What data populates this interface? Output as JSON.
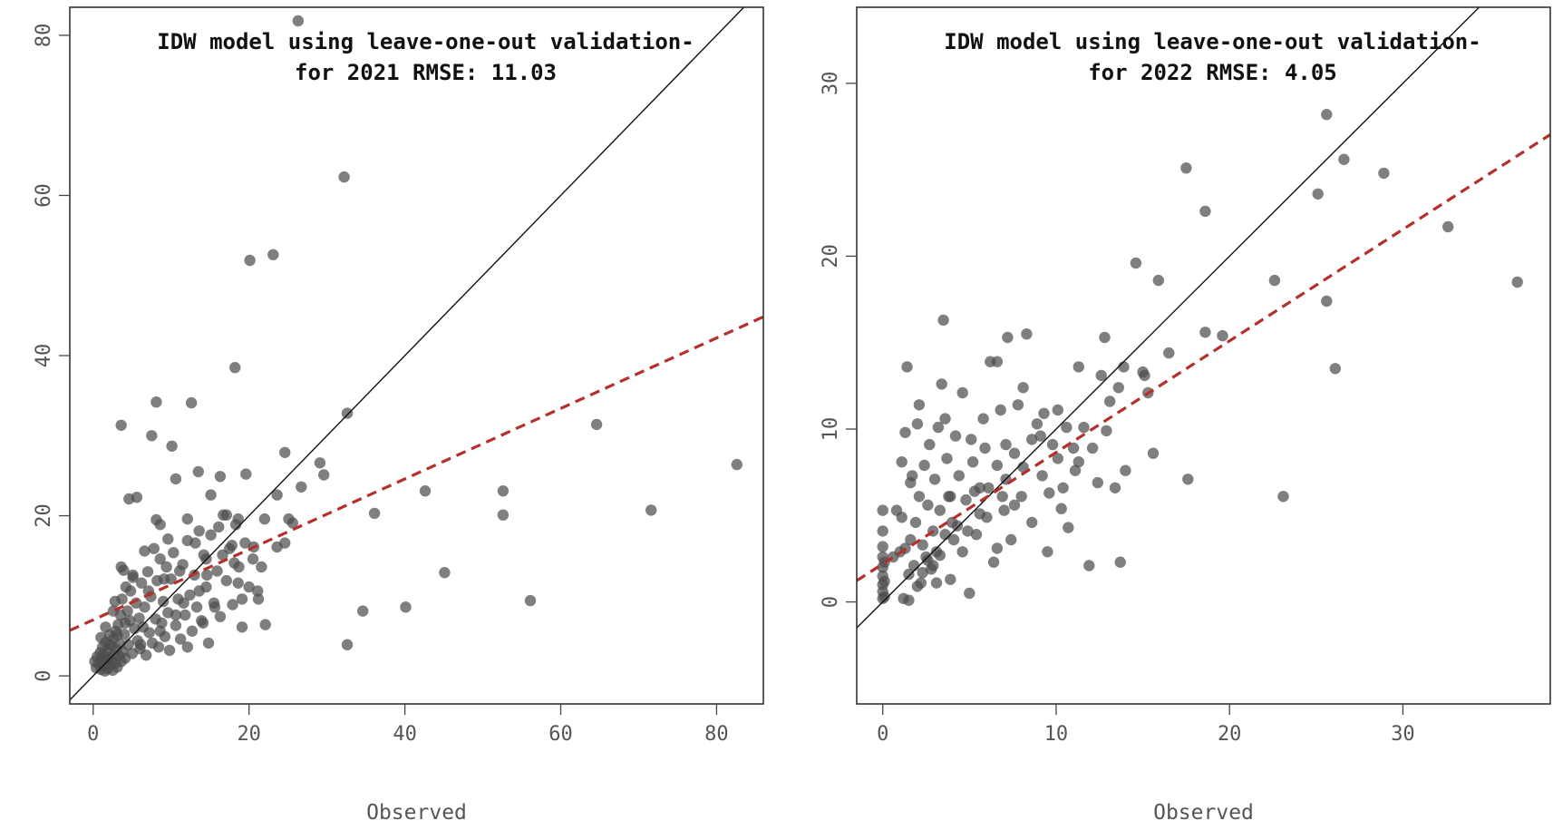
{
  "chart_data": [
    {
      "type": "scatter",
      "title_lines": [
        "IDW model using leave-one-out validation-",
        "for 2021 RMSE:  11.03"
      ],
      "xlabel": "Observed",
      "ylabel": "",
      "xlim": [
        -3,
        86
      ],
      "ylim": [
        -3.5,
        83.5
      ],
      "xticks": [
        0,
        20,
        40,
        60,
        80
      ],
      "yticks": [
        0,
        20,
        40,
        60,
        80
      ],
      "point_color": "#4d4d4d",
      "fit_line_color": "#b5302a",
      "identity_line": true,
      "fit_line": {
        "intercept": 7.0,
        "slope": 0.44
      },
      "points": [
        [
          0.2,
          1.8
        ],
        [
          0.4,
          1.0
        ],
        [
          0.5,
          2.4
        ],
        [
          0.7,
          1.5
        ],
        [
          0.9,
          2.9
        ],
        [
          1.0,
          0.8
        ],
        [
          1.1,
          2.1
        ],
        [
          1.2,
          3.6
        ],
        [
          1.3,
          1.3
        ],
        [
          1.4,
          2.6
        ],
        [
          1.5,
          0.6
        ],
        [
          1.6,
          4.2
        ],
        [
          1.7,
          1.9
        ],
        [
          1.8,
          3.1
        ],
        [
          1.9,
          0.9
        ],
        [
          2.0,
          2.3
        ],
        [
          2.1,
          5.1
        ],
        [
          2.2,
          1.4
        ],
        [
          2.3,
          3.8
        ],
        [
          2.4,
          2.0
        ],
        [
          2.5,
          0.7
        ],
        [
          2.6,
          4.6
        ],
        [
          2.7,
          2.7
        ],
        [
          2.8,
          1.6
        ],
        [
          2.9,
          5.6
        ],
        [
          3.0,
          3.3
        ],
        [
          3.1,
          1.1
        ],
        [
          3.2,
          6.4
        ],
        [
          3.3,
          2.5
        ],
        [
          3.4,
          4.0
        ],
        [
          3.5,
          7.6
        ],
        [
          3.6,
          1.8
        ],
        [
          3.7,
          9.6
        ],
        [
          3.8,
          3.0
        ],
        [
          3.9,
          13.2
        ],
        [
          4.0,
          5.2
        ],
        [
          4.1,
          2.2
        ],
        [
          4.2,
          11.1
        ],
        [
          4.4,
          8.1
        ],
        [
          4.5,
          3.9
        ],
        [
          4.7,
          6.9
        ],
        [
          4.8,
          10.6
        ],
        [
          5.0,
          2.8
        ],
        [
          5.1,
          12.3
        ],
        [
          5.3,
          5.9
        ],
        [
          5.5,
          9.1
        ],
        [
          5.7,
          4.4
        ],
        [
          5.9,
          7.2
        ],
        [
          6.0,
          3.4
        ],
        [
          6.2,
          11.6
        ],
        [
          6.4,
          6.1
        ],
        [
          6.6,
          8.6
        ],
        [
          6.8,
          2.6
        ],
        [
          7.0,
          13.0
        ],
        [
          7.2,
          5.4
        ],
        [
          7.4,
          9.9
        ],
        [
          7.6,
          4.1
        ],
        [
          7.8,
          15.9
        ],
        [
          8.0,
          7.1
        ],
        [
          8.2,
          11.9
        ],
        [
          8.4,
          3.6
        ],
        [
          8.6,
          14.6
        ],
        [
          8.8,
          6.6
        ],
        [
          9.0,
          9.3
        ],
        [
          9.2,
          4.9
        ],
        [
          9.4,
          13.6
        ],
        [
          9.6,
          7.9
        ],
        [
          9.8,
          3.2
        ],
        [
          10.0,
          12.1
        ],
        [
          10.3,
          15.4
        ],
        [
          10.6,
          6.3
        ],
        [
          10.9,
          9.6
        ],
        [
          11.2,
          4.6
        ],
        [
          11.5,
          13.9
        ],
        [
          11.8,
          7.6
        ],
        [
          12.1,
          16.9
        ],
        [
          12.4,
          10.1
        ],
        [
          12.7,
          5.6
        ],
        [
          13.0,
          12.6
        ],
        [
          13.3,
          8.6
        ],
        [
          13.6,
          18.1
        ],
        [
          13.9,
          6.9
        ],
        [
          14.2,
          15.1
        ],
        [
          14.5,
          11.1
        ],
        [
          14.8,
          4.1
        ],
        [
          15.1,
          17.6
        ],
        [
          15.5,
          9.1
        ],
        [
          15.9,
          13.1
        ],
        [
          16.3,
          7.4
        ],
        [
          16.7,
          20.1
        ],
        [
          17.1,
          11.9
        ],
        [
          17.5,
          15.9
        ],
        [
          17.9,
          8.9
        ],
        [
          18.3,
          18.9
        ],
        [
          18.7,
          13.6
        ],
        [
          19.1,
          6.1
        ],
        [
          19.5,
          16.6
        ],
        [
          20.0,
          11.1
        ],
        [
          20.5,
          14.6
        ],
        [
          21.2,
          9.6
        ],
        [
          22.0,
          19.6
        ],
        [
          1.0,
          4.8
        ],
        [
          2.8,
          9.3
        ],
        [
          3.6,
          13.6
        ],
        [
          4.6,
          22.1
        ],
        [
          3.6,
          31.3
        ],
        [
          5.6,
          22.3
        ],
        [
          7.5,
          30.0
        ],
        [
          8.1,
          34.2
        ],
        [
          8.1,
          19.5
        ],
        [
          8.6,
          18.9
        ],
        [
          10.1,
          28.7
        ],
        [
          10.6,
          24.6
        ],
        [
          12.6,
          34.1
        ],
        [
          13.1,
          16.6
        ],
        [
          13.5,
          25.5
        ],
        [
          14.5,
          14.6
        ],
        [
          16.3,
          24.9
        ],
        [
          17.8,
          16.3
        ],
        [
          18.2,
          38.5
        ],
        [
          18.6,
          19.6
        ],
        [
          19.6,
          25.2
        ],
        [
          20.1,
          51.9
        ],
        [
          23.1,
          52.6
        ],
        [
          23.6,
          22.6
        ],
        [
          24.6,
          27.9
        ],
        [
          25.1,
          19.6
        ],
        [
          25.6,
          19.1
        ],
        [
          26.7,
          23.6
        ],
        [
          29.1,
          26.6
        ],
        [
          29.6,
          25.1
        ],
        [
          32.2,
          62.3
        ],
        [
          32.6,
          32.8
        ],
        [
          24.6,
          16.6
        ],
        [
          36.1,
          20.3
        ],
        [
          42.6,
          23.1
        ],
        [
          52.6,
          23.1
        ],
        [
          52.6,
          20.1
        ],
        [
          64.6,
          31.4
        ],
        [
          71.6,
          20.7
        ],
        [
          82.6,
          26.4
        ],
        [
          32.6,
          3.9
        ],
        [
          34.6,
          8.1
        ],
        [
          40.1,
          8.6
        ],
        [
          45.1,
          12.9
        ],
        [
          56.1,
          9.4
        ],
        [
          26.3,
          81.8
        ],
        [
          22.1,
          6.4
        ],
        [
          21.1,
          10.6
        ],
        [
          12.1,
          3.6
        ],
        [
          14.1,
          6.6
        ],
        [
          15.1,
          22.6
        ],
        [
          11.1,
          13.1
        ],
        [
          9.6,
          17.1
        ],
        [
          6.6,
          15.6
        ],
        [
          5.1,
          12.6
        ],
        [
          18.1,
          14.1
        ],
        [
          19.1,
          9.6
        ],
        [
          16.1,
          18.6
        ],
        [
          17.1,
          20.1
        ],
        [
          13.6,
          10.6
        ],
        [
          12.1,
          19.6
        ],
        [
          20.6,
          16.1
        ],
        [
          15.6,
          8.6
        ],
        [
          10.6,
          7.6
        ],
        [
          8.6,
          5.6
        ],
        [
          6.1,
          3.9
        ],
        [
          4.1,
          6.6
        ],
        [
          2.6,
          8.1
        ],
        [
          1.6,
          6.1
        ],
        [
          7.1,
          10.6
        ],
        [
          9.1,
          12.1
        ],
        [
          11.6,
          9.1
        ],
        [
          14.6,
          12.6
        ],
        [
          16.6,
          15.1
        ],
        [
          18.6,
          11.6
        ],
        [
          21.6,
          13.6
        ],
        [
          23.6,
          16.1
        ],
        [
          2.1,
          3.9
        ],
        [
          3.1,
          5.1
        ]
      ]
    },
    {
      "type": "scatter",
      "title_lines": [
        "IDW model using leave-one-out validation-",
        "for 2022 RMSE:  4.05"
      ],
      "xlabel": "Observed",
      "ylabel": "",
      "xlim": [
        -1.5,
        38.5
      ],
      "ylim": [
        -5.9,
        34.4
      ],
      "xticks": [
        0,
        10,
        20,
        30
      ],
      "yticks": [
        0,
        10,
        20,
        30
      ],
      "point_color": "#4d4d4d",
      "fit_line_color": "#b5302a",
      "identity_line": true,
      "fit_line": {
        "intercept": 2.2,
        "slope": 0.645
      },
      "points": [
        [
          0,
          0.2
        ],
        [
          0,
          0.6
        ],
        [
          0,
          1.0
        ],
        [
          0,
          1.5
        ],
        [
          0,
          2.0
        ],
        [
          0,
          2.6
        ],
        [
          0,
          3.2
        ],
        [
          0,
          4.1
        ],
        [
          0,
          5.3
        ],
        [
          0.1,
          0.3
        ],
        [
          0.1,
          1.2
        ],
        [
          0.1,
          2.3
        ],
        [
          0.8,
          5.3
        ],
        [
          1.0,
          2.9
        ],
        [
          1.1,
          4.9
        ],
        [
          1.2,
          0.2
        ],
        [
          1.3,
          9.8
        ],
        [
          1.4,
          13.6
        ],
        [
          1.5,
          1.6
        ],
        [
          1.6,
          3.6
        ],
        [
          1.7,
          7.3
        ],
        [
          1.8,
          2.1
        ],
        [
          1.9,
          4.6
        ],
        [
          2.0,
          10.3
        ],
        [
          2.1,
          6.1
        ],
        [
          2.2,
          1.1
        ],
        [
          2.3,
          3.3
        ],
        [
          2.4,
          7.9
        ],
        [
          2.5,
          2.6
        ],
        [
          2.6,
          5.6
        ],
        [
          2.7,
          9.1
        ],
        [
          2.8,
          1.9
        ],
        [
          2.9,
          4.1
        ],
        [
          3.0,
          7.1
        ],
        [
          3.1,
          2.9
        ],
        [
          3.2,
          10.1
        ],
        [
          3.3,
          5.3
        ],
        [
          3.4,
          12.6
        ],
        [
          3.5,
          16.3
        ],
        [
          3.6,
          3.9
        ],
        [
          3.7,
          8.3
        ],
        [
          3.8,
          6.1
        ],
        [
          3.9,
          1.3
        ],
        [
          4.0,
          4.6
        ],
        [
          4.2,
          9.6
        ],
        [
          4.4,
          7.3
        ],
        [
          4.6,
          2.9
        ],
        [
          4.8,
          5.9
        ],
        [
          5.0,
          0.5
        ],
        [
          5.2,
          8.1
        ],
        [
          5.4,
          3.9
        ],
        [
          5.6,
          6.6
        ],
        [
          5.8,
          10.6
        ],
        [
          6.0,
          4.9
        ],
        [
          6.2,
          13.9
        ],
        [
          6.4,
          2.3
        ],
        [
          6.6,
          7.9
        ],
        [
          6.8,
          11.1
        ],
        [
          7.0,
          5.3
        ],
        [
          7.2,
          15.3
        ],
        [
          7.4,
          3.6
        ],
        [
          7.6,
          8.6
        ],
        [
          7.8,
          11.4
        ],
        [
          8.0,
          6.1
        ],
        [
          8.3,
          15.5
        ],
        [
          8.6,
          4.6
        ],
        [
          8.9,
          10.3
        ],
        [
          9.2,
          7.3
        ],
        [
          9.5,
          2.9
        ],
        [
          9.8,
          9.1
        ],
        [
          10.1,
          11.1
        ],
        [
          10.4,
          6.6
        ],
        [
          10.7,
          4.3
        ],
        [
          11.0,
          8.9
        ],
        [
          11.3,
          13.6
        ],
        [
          11.6,
          10.1
        ],
        [
          11.9,
          2.1
        ],
        [
          12.4,
          6.9
        ],
        [
          12.8,
          15.3
        ],
        [
          13.1,
          11.6
        ],
        [
          13.4,
          6.6
        ],
        [
          13.7,
          2.3
        ],
        [
          14.0,
          7.6
        ],
        [
          14.6,
          19.6
        ],
        [
          15.0,
          13.3
        ],
        [
          15.3,
          12.1
        ],
        [
          15.6,
          8.6
        ],
        [
          15.9,
          18.6
        ],
        [
          16.5,
          14.4
        ],
        [
          17.5,
          25.1
        ],
        [
          17.6,
          7.1
        ],
        [
          18.6,
          22.6
        ],
        [
          19.6,
          15.4
        ],
        [
          22.6,
          18.6
        ],
        [
          23.1,
          6.1
        ],
        [
          25.1,
          23.6
        ],
        [
          25.6,
          28.2
        ],
        [
          25.6,
          17.4
        ],
        [
          26.1,
          13.5
        ],
        [
          26.6,
          25.6
        ],
        [
          28.9,
          24.8
        ],
        [
          32.6,
          21.7
        ],
        [
          36.6,
          18.5
        ],
        [
          8.1,
          7.8
        ],
        [
          10.1,
          8.3
        ],
        [
          13.6,
          12.4
        ],
        [
          15.1,
          13.1
        ],
        [
          18.6,
          15.6
        ],
        [
          1.5,
          0.1
        ],
        [
          2.0,
          0.9
        ],
        [
          2.3,
          1.7
        ],
        [
          2.6,
          2.4
        ],
        [
          2.9,
          2.1
        ],
        [
          3.1,
          1.1
        ],
        [
          3.3,
          2.7
        ],
        [
          4.1,
          3.6
        ],
        [
          4.3,
          4.4
        ],
        [
          5.3,
          6.4
        ],
        [
          5.6,
          5.1
        ],
        [
          6.1,
          6.6
        ],
        [
          6.6,
          3.1
        ],
        [
          7.1,
          9.1
        ],
        [
          7.6,
          5.6
        ],
        [
          8.1,
          12.4
        ],
        [
          9.1,
          9.6
        ],
        [
          9.6,
          6.3
        ],
        [
          10.6,
          10.1
        ],
        [
          11.1,
          7.6
        ],
        [
          12.1,
          8.9
        ],
        [
          12.6,
          13.1
        ],
        [
          1.1,
          8.1
        ],
        [
          1.6,
          6.9
        ],
        [
          2.1,
          11.4
        ],
        [
          3.6,
          10.6
        ],
        [
          4.6,
          12.1
        ],
        [
          5.1,
          9.4
        ],
        [
          6.6,
          13.9
        ],
        [
          7.1,
          7.1
        ],
        [
          0.6,
          2.6
        ],
        [
          1.3,
          3.1
        ],
        [
          3.9,
          6.1
        ],
        [
          4.9,
          4.1
        ],
        [
          5.9,
          8.9
        ],
        [
          6.9,
          6.1
        ],
        [
          8.6,
          9.4
        ],
        [
          9.3,
          10.9
        ],
        [
          10.3,
          5.4
        ],
        [
          11.3,
          8.1
        ],
        [
          12.9,
          9.9
        ],
        [
          13.9,
          13.6
        ]
      ]
    }
  ]
}
